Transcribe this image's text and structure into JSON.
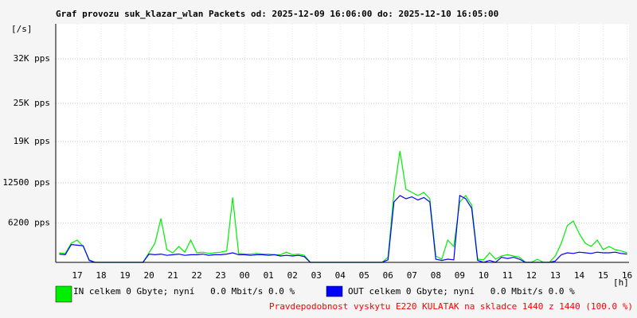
{
  "chart_data": {
    "type": "line",
    "title": "Graf provozu suk_klazar_wlan Packets od: 2025-12-09 16:06:00 do: 2025-12-10 16:05:00",
    "y_label": "[/s]",
    "x_label": "[h]",
    "note": "Pravdepodobnost vyskytu E220 KULATAK na skladce 1440 z 1440 (100.0 %)",
    "xlim": [
      16.1,
      40.083
    ],
    "xticks": [
      17,
      18,
      19,
      20,
      21,
      22,
      23,
      {
        "value": 24,
        "label": "00"
      },
      {
        "value": 25,
        "label": "01"
      },
      {
        "value": 26,
        "label": "02"
      },
      {
        "value": 27,
        "label": "03"
      },
      {
        "value": 28,
        "label": "04"
      },
      {
        "value": 29,
        "label": "05"
      },
      {
        "value": 30,
        "label": "06"
      },
      {
        "value": 31,
        "label": "07"
      },
      {
        "value": 32,
        "label": "08"
      },
      {
        "value": 33,
        "label": "09"
      },
      {
        "value": 34,
        "label": "10"
      },
      {
        "value": 35,
        "label": "11"
      },
      {
        "value": 36,
        "label": "12"
      },
      {
        "value": 37,
        "label": "13"
      },
      {
        "value": 38,
        "label": "14"
      },
      {
        "value": 39,
        "label": "15"
      },
      {
        "value": 40,
        "label": "16"
      }
    ],
    "ylim": [
      0,
      37500
    ],
    "yticks": [
      {
        "value": 6200,
        "label": "6200 pps"
      },
      {
        "value": 12500,
        "label": "12500 pps"
      },
      {
        "value": 19000,
        "label": "19K pps"
      },
      {
        "value": 25000,
        "label": "25K pps"
      },
      {
        "value": 32000,
        "label": "32K pps"
      }
    ],
    "grid": true,
    "x": [
      16.25,
      16.5,
      16.75,
      17,
      17.25,
      17.5,
      17.75,
      18,
      18.25,
      18.5,
      18.75,
      19,
      19.25,
      19.5,
      19.75,
      20,
      20.25,
      20.5,
      20.75,
      21,
      21.25,
      21.5,
      21.75,
      22,
      22.25,
      22.5,
      22.75,
      23,
      23.25,
      23.5,
      23.75,
      24,
      24.25,
      24.5,
      24.75,
      25,
      25.25,
      25.5,
      25.75,
      26,
      26.25,
      26.5,
      26.75,
      27,
      27.25,
      27.5,
      27.75,
      28,
      28.25,
      28.5,
      28.75,
      29,
      29.25,
      29.5,
      29.75,
      30,
      30.25,
      30.5,
      30.75,
      31,
      31.25,
      31.5,
      31.75,
      32,
      32.25,
      32.5,
      32.75,
      33,
      33.25,
      33.5,
      33.75,
      34,
      34.25,
      34.5,
      34.75,
      35,
      35.25,
      35.5,
      35.75,
      36,
      36.25,
      36.5,
      36.75,
      37,
      37.25,
      37.5,
      37.75,
      38,
      38.25,
      38.5,
      38.75,
      39,
      39.25,
      39.5,
      39.75,
      40
    ],
    "series": [
      {
        "name": "IN celkem 0 Gbyte; nyní   0.0 Mbit/s 0.0 %",
        "color": "#00ee00",
        "values": [
          1500,
          1400,
          3000,
          3500,
          2500,
          400,
          0,
          0,
          0,
          0,
          0,
          0,
          0,
          0,
          0,
          1500,
          3000,
          6900,
          2000,
          1500,
          2500,
          1600,
          3500,
          1500,
          1600,
          1400,
          1500,
          1600,
          1800,
          10200,
          1400,
          1300,
          1300,
          1400,
          1300,
          1300,
          1200,
          1200,
          1600,
          1200,
          1300,
          1100,
          0,
          0,
          0,
          0,
          0,
          0,
          0,
          0,
          0,
          0,
          0,
          0,
          0,
          800,
          11000,
          17500,
          11500,
          11000,
          10500,
          11000,
          10000,
          1000,
          500,
          3500,
          2500,
          9500,
          10500,
          9000,
          500,
          400,
          1500,
          500,
          1000,
          1200,
          1000,
          800,
          0,
          0,
          500,
          0,
          0,
          1000,
          3000,
          5800,
          6500,
          4500,
          3000,
          2500,
          3500,
          2000,
          2500,
          2000,
          1800,
          1500
        ]
      },
      {
        "name": "OUT celkem 0 Gbyte; nyní   0.0 Mbit/s 0.0 %",
        "color": "#0000ff",
        "values": [
          1300,
          1200,
          2800,
          2700,
          2600,
          300,
          0,
          0,
          0,
          0,
          0,
          0,
          0,
          0,
          0,
          1300,
          1200,
          1300,
          1100,
          1200,
          1300,
          1100,
          1200,
          1200,
          1300,
          1100,
          1200,
          1200,
          1300,
          1500,
          1200,
          1200,
          1100,
          1200,
          1200,
          1100,
          1200,
          1000,
          1100,
          1000,
          1100,
          900,
          0,
          0,
          0,
          0,
          0,
          0,
          0,
          0,
          0,
          0,
          0,
          0,
          0,
          400,
          9500,
          10500,
          10000,
          10300,
          9800,
          10200,
          9500,
          500,
          300,
          500,
          400,
          10500,
          10000,
          8500,
          300,
          0,
          300,
          0,
          800,
          600,
          800,
          500,
          0,
          0,
          0,
          0,
          0,
          200,
          1200,
          1500,
          1400,
          1600,
          1500,
          1400,
          1600,
          1500,
          1500,
          1600,
          1400,
          1300
        ]
      }
    ]
  }
}
